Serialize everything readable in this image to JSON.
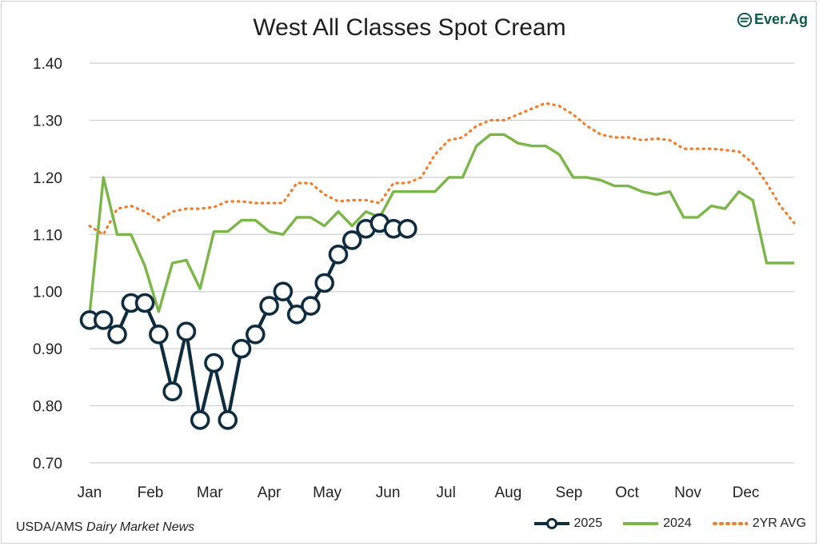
{
  "title": "West All Classes Spot Cream",
  "logo_text": "Ever.Ag",
  "source_prefix": "USDA/AMS ",
  "source_italic": "Dairy Market News",
  "chart_data": {
    "type": "line",
    "title": "West All Classes Spot Cream",
    "xlabel": "",
    "ylabel": "",
    "ylim": [
      0.7,
      1.4
    ],
    "yticks": [
      "0.70",
      "0.80",
      "0.90",
      "1.00",
      "1.10",
      "1.20",
      "1.30",
      "1.40"
    ],
    "xlim": [
      1,
      52
    ],
    "month_labels": [
      "Jan",
      "Feb",
      "Mar",
      "Apr",
      "May",
      "Jun",
      "Jul",
      "Aug",
      "Sep",
      "Oct",
      "Nov",
      "Dec"
    ],
    "month_weeks": [
      1,
      5.4,
      9.7,
      14,
      18.2,
      22.6,
      26.8,
      31.3,
      35.7,
      39.9,
      44.3,
      48.5
    ],
    "grid": true,
    "legend_position": "bottom-right",
    "series": [
      {
        "name": "2025",
        "color": "#0f2d40",
        "style": "line-marker",
        "x": [
          1,
          2,
          3,
          4,
          5,
          6,
          7,
          8,
          9,
          10,
          11,
          12,
          13,
          14,
          15,
          16,
          17,
          18,
          19,
          20,
          21,
          22,
          23,
          24
        ],
        "values": [
          0.95,
          0.95,
          0.925,
          0.98,
          0.98,
          0.925,
          0.825,
          0.93,
          0.775,
          0.875,
          0.775,
          0.9,
          0.925,
          0.975,
          1.0,
          0.96,
          0.975,
          1.015,
          1.065,
          1.09,
          1.11,
          1.12,
          1.11,
          1.11
        ]
      },
      {
        "name": "2024",
        "color": "#7ab648",
        "style": "line",
        "x": [
          1,
          2,
          3,
          4,
          5,
          6,
          7,
          8,
          9,
          10,
          11,
          12,
          13,
          14,
          15,
          16,
          17,
          18,
          19,
          20,
          21,
          22,
          23,
          24,
          25,
          26,
          27,
          28,
          29,
          30,
          31,
          32,
          33,
          34,
          35,
          36,
          37,
          38,
          39,
          40,
          41,
          42,
          43,
          44,
          45,
          46,
          47,
          48,
          49,
          50,
          51,
          52
        ],
        "values": [
          0.96,
          1.2,
          1.1,
          1.1,
          1.045,
          0.965,
          1.05,
          1.055,
          1.005,
          1.105,
          1.105,
          1.125,
          1.125,
          1.105,
          1.1,
          1.13,
          1.13,
          1.115,
          1.14,
          1.115,
          1.14,
          1.13,
          1.175,
          1.175,
          1.175,
          1.175,
          1.2,
          1.2,
          1.255,
          1.275,
          1.275,
          1.26,
          1.255,
          1.255,
          1.24,
          1.2,
          1.2,
          1.195,
          1.185,
          1.185,
          1.175,
          1.17,
          1.175,
          1.13,
          1.13,
          1.15,
          1.145,
          1.175,
          1.16,
          1.05,
          1.05,
          1.05
        ]
      },
      {
        "name": "2YR AVG",
        "color": "#f07f2d",
        "style": "dotted",
        "x": [
          1,
          2,
          3,
          4,
          5,
          6,
          7,
          8,
          9,
          10,
          11,
          12,
          13,
          14,
          15,
          16,
          17,
          18,
          19,
          20,
          21,
          22,
          23,
          24,
          25,
          26,
          27,
          28,
          29,
          30,
          31,
          32,
          33,
          34,
          35,
          36,
          37,
          38,
          39,
          40,
          41,
          42,
          43,
          44,
          45,
          46,
          47,
          48,
          49,
          50,
          51,
          52
        ],
        "values": [
          1.115,
          1.1,
          1.145,
          1.15,
          1.14,
          1.125,
          1.14,
          1.145,
          1.145,
          1.148,
          1.158,
          1.158,
          1.155,
          1.155,
          1.155,
          1.19,
          1.19,
          1.17,
          1.158,
          1.16,
          1.16,
          1.155,
          1.19,
          1.19,
          1.2,
          1.24,
          1.265,
          1.27,
          1.29,
          1.3,
          1.3,
          1.31,
          1.32,
          1.33,
          1.325,
          1.31,
          1.29,
          1.275,
          1.27,
          1.27,
          1.265,
          1.268,
          1.265,
          1.25,
          1.25,
          1.25,
          1.248,
          1.245,
          1.225,
          1.19,
          1.15,
          1.12
        ]
      }
    ]
  }
}
